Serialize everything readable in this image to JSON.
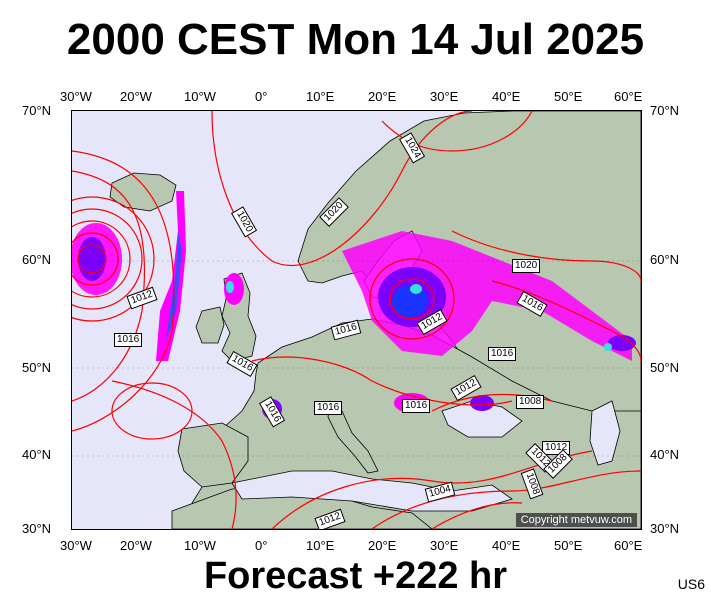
{
  "header": {
    "title": "2000 CEST Mon 14 Jul 2025"
  },
  "footer": {
    "forecast": "Forecast +222 hr",
    "model_code": "US6"
  },
  "map": {
    "copyright": "Copyright metvuw.com",
    "lon_labels": [
      "30°W",
      "20°W",
      "10°W",
      "0°",
      "10°E",
      "20°E",
      "30°E",
      "40°E",
      "50°E",
      "60°E"
    ],
    "lat_labels": [
      "70°N",
      "60°N",
      "50°N",
      "40°N",
      "30°N"
    ],
    "colors": {
      "ocean": "#e6e6fa",
      "land": "#b7c7b0",
      "isobar": "#ff0000",
      "rain_low": "#ff00ff",
      "rain_mid": "#7b00ff",
      "rain_high": "#1a33ff",
      "rain_peak": "#35e0e0"
    },
    "isobar_labels": [
      "1024",
      "1020",
      "1020",
      "1020",
      "1012",
      "1016",
      "1016",
      "1016",
      "1016",
      "1012",
      "1016",
      "1016",
      "1016",
      "1016",
      "1012",
      "1008",
      "1012",
      "1012",
      "1008",
      "1008",
      "1004",
      "1012"
    ]
  }
}
